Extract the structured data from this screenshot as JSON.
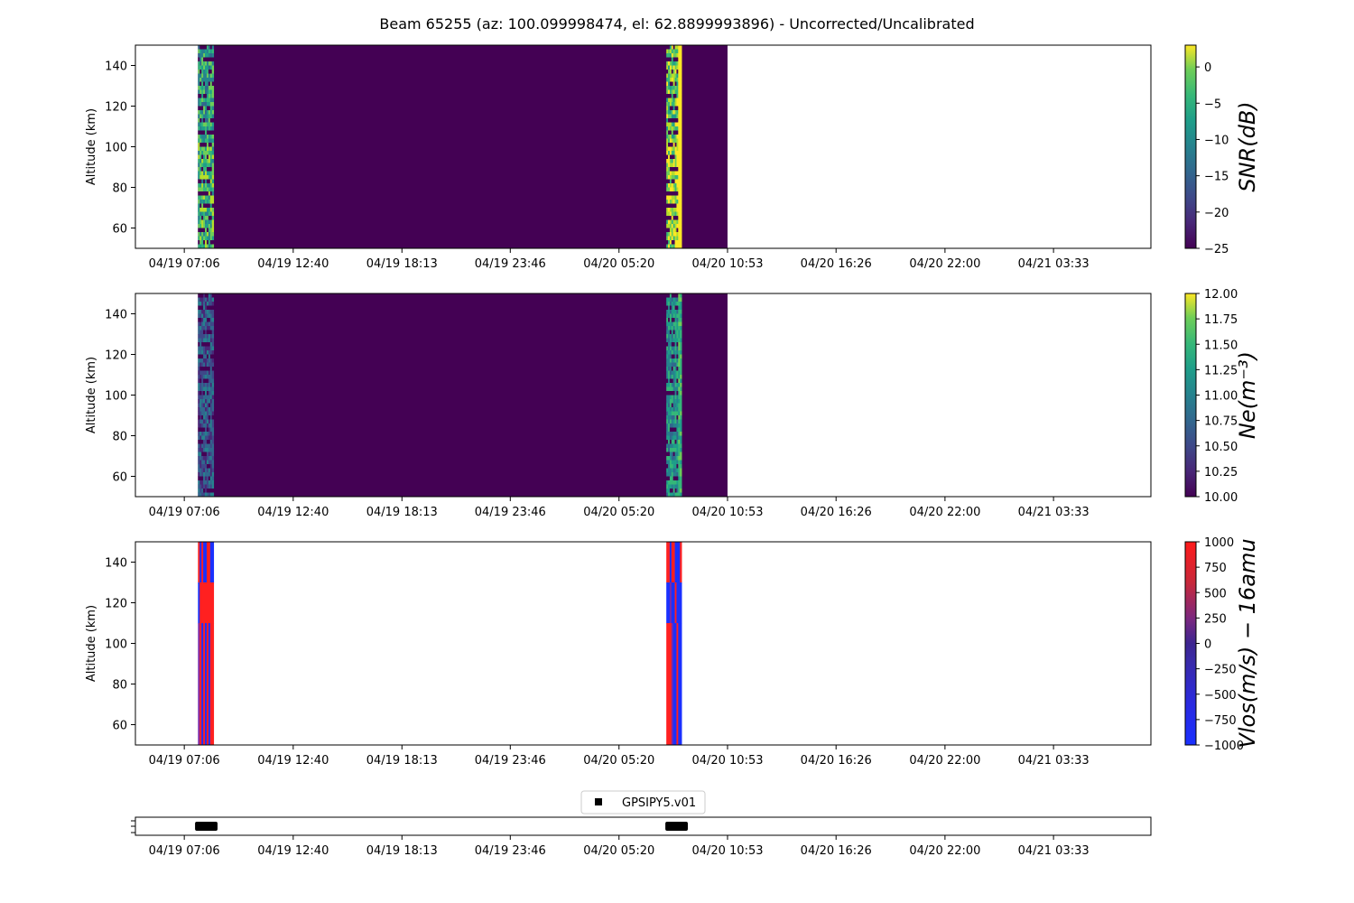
{
  "figure_title": "Beam 65255 (az: 100.099998474, el: 62.8899993896) - Uncorrected/Uncalibrated",
  "x_tick_labels": [
    "04/19 07:06",
    "04/19 12:40",
    "04/19 18:13",
    "04/19 23:46",
    "04/20 05:20",
    "04/20 10:53",
    "04/20 16:26",
    "04/20 22:00",
    "04/21 03:33"
  ],
  "colors": {
    "background_fill": "#440154",
    "vlos_positive": "#ff2020",
    "vlos_negative": "#1a30ff",
    "vlos_mid": "#7a2aa8",
    "legend_marker": "#000000"
  },
  "chart_data": [
    {
      "type": "heatmap",
      "name": "snr",
      "ylabel": "Altitude (km)",
      "ylim": [
        50,
        150
      ],
      "y_ticks": [
        60,
        80,
        100,
        120,
        140
      ],
      "x_range_hours": [
        -2.5,
        49.43
      ],
      "x_ticks_hours": [
        0,
        5.57,
        11.13,
        16.67,
        22.23,
        27.78,
        33.33,
        38.9,
        44.45
      ],
      "x_tick_labels": [
        "04/19 07:06",
        "04/19 12:40",
        "04/19 18:13",
        "04/19 23:46",
        "04/20 05:20",
        "04/20 10:53",
        "04/20 16:26",
        "04/20 22:00",
        "04/21 03:33"
      ],
      "data_extent_hours": [
        0.7,
        27.78
      ],
      "active_blocks_hours": [
        [
          0.7,
          1.5
        ],
        [
          24.65,
          25.43
        ]
      ],
      "colorbar": {
        "label": "SNR(dB)",
        "colormap": "viridis",
        "range": [
          -25,
          3
        ],
        "ticks": [
          "0",
          "−5",
          "−10",
          "−15",
          "−20",
          "−25"
        ],
        "tick_values": [
          0,
          -5,
          -10,
          -15,
          -20,
          -25
        ]
      }
    },
    {
      "type": "heatmap",
      "name": "ne",
      "ylabel": "Altitude (km)",
      "ylim": [
        50,
        150
      ],
      "y_ticks": [
        60,
        80,
        100,
        120,
        140
      ],
      "x_range_hours": [
        -2.5,
        49.43
      ],
      "x_ticks_hours": [
        0,
        5.57,
        11.13,
        16.67,
        22.23,
        27.78,
        33.33,
        38.9,
        44.45
      ],
      "x_tick_labels": [
        "04/19 07:06",
        "04/19 12:40",
        "04/19 18:13",
        "04/19 23:46",
        "04/20 05:20",
        "04/20 10:53",
        "04/20 16:26",
        "04/20 22:00",
        "04/21 03:33"
      ],
      "data_extent_hours": [
        0.7,
        27.78
      ],
      "active_blocks_hours": [
        [
          0.7,
          1.5
        ],
        [
          24.65,
          25.43
        ]
      ],
      "colorbar": {
        "label": "Ne(m⁻³)",
        "colormap": "viridis",
        "range": [
          10,
          12
        ],
        "ticks": [
          "12.00",
          "11.75",
          "11.50",
          "11.25",
          "11.00",
          "10.75",
          "10.50",
          "10.25",
          "10.00"
        ],
        "tick_values": [
          12,
          11.75,
          11.5,
          11.25,
          11,
          10.75,
          10.5,
          10.25,
          10
        ]
      }
    },
    {
      "type": "heatmap",
      "name": "vlos",
      "ylabel": "Altitude (km)",
      "ylim": [
        50,
        150
      ],
      "y_ticks": [
        60,
        80,
        100,
        120,
        140
      ],
      "x_range_hours": [
        -2.5,
        49.43
      ],
      "x_ticks_hours": [
        0,
        5.57,
        11.13,
        16.67,
        22.23,
        27.78,
        33.33,
        38.9,
        44.45
      ],
      "x_tick_labels": [
        "04/19 07:06",
        "04/19 12:40",
        "04/19 18:13",
        "04/19 23:46",
        "04/20 05:20",
        "04/20 10:53",
        "04/20 16:26",
        "04/20 22:00",
        "04/21 03:33"
      ],
      "active_blocks_hours": [
        [
          0.7,
          1.5
        ],
        [
          24.65,
          25.43
        ]
      ],
      "colorbar": {
        "label": "Vlos(m/s) − 16amu",
        "colormap": "bwr",
        "range": [
          -1000,
          1000
        ],
        "ticks": [
          "1000",
          "750",
          "500",
          "250",
          "0",
          "−250",
          "−500",
          "−750",
          "−1000"
        ],
        "tick_values": [
          1000,
          750,
          500,
          250,
          0,
          -250,
          -500,
          -750,
          -1000
        ]
      }
    },
    {
      "type": "scatter",
      "name": "experiment-timeline",
      "legend": [
        "GPSIPY5.v01"
      ],
      "legend_position": "top-center",
      "x_range_hours": [
        -2.5,
        49.43
      ],
      "x_ticks_hours": [
        0,
        5.57,
        11.13,
        16.67,
        22.23,
        27.78,
        33.33,
        38.9,
        44.45
      ],
      "x_tick_labels": [
        "04/19 07:06",
        "04/19 12:40",
        "04/19 18:13",
        "04/19 23:46",
        "04/20 05:20",
        "04/20 10:53",
        "04/20 16:26",
        "04/20 22:00",
        "04/21 03:33"
      ],
      "segments_hours": [
        [
          0.55,
          1.7
        ],
        [
          24.6,
          25.75
        ]
      ]
    }
  ]
}
